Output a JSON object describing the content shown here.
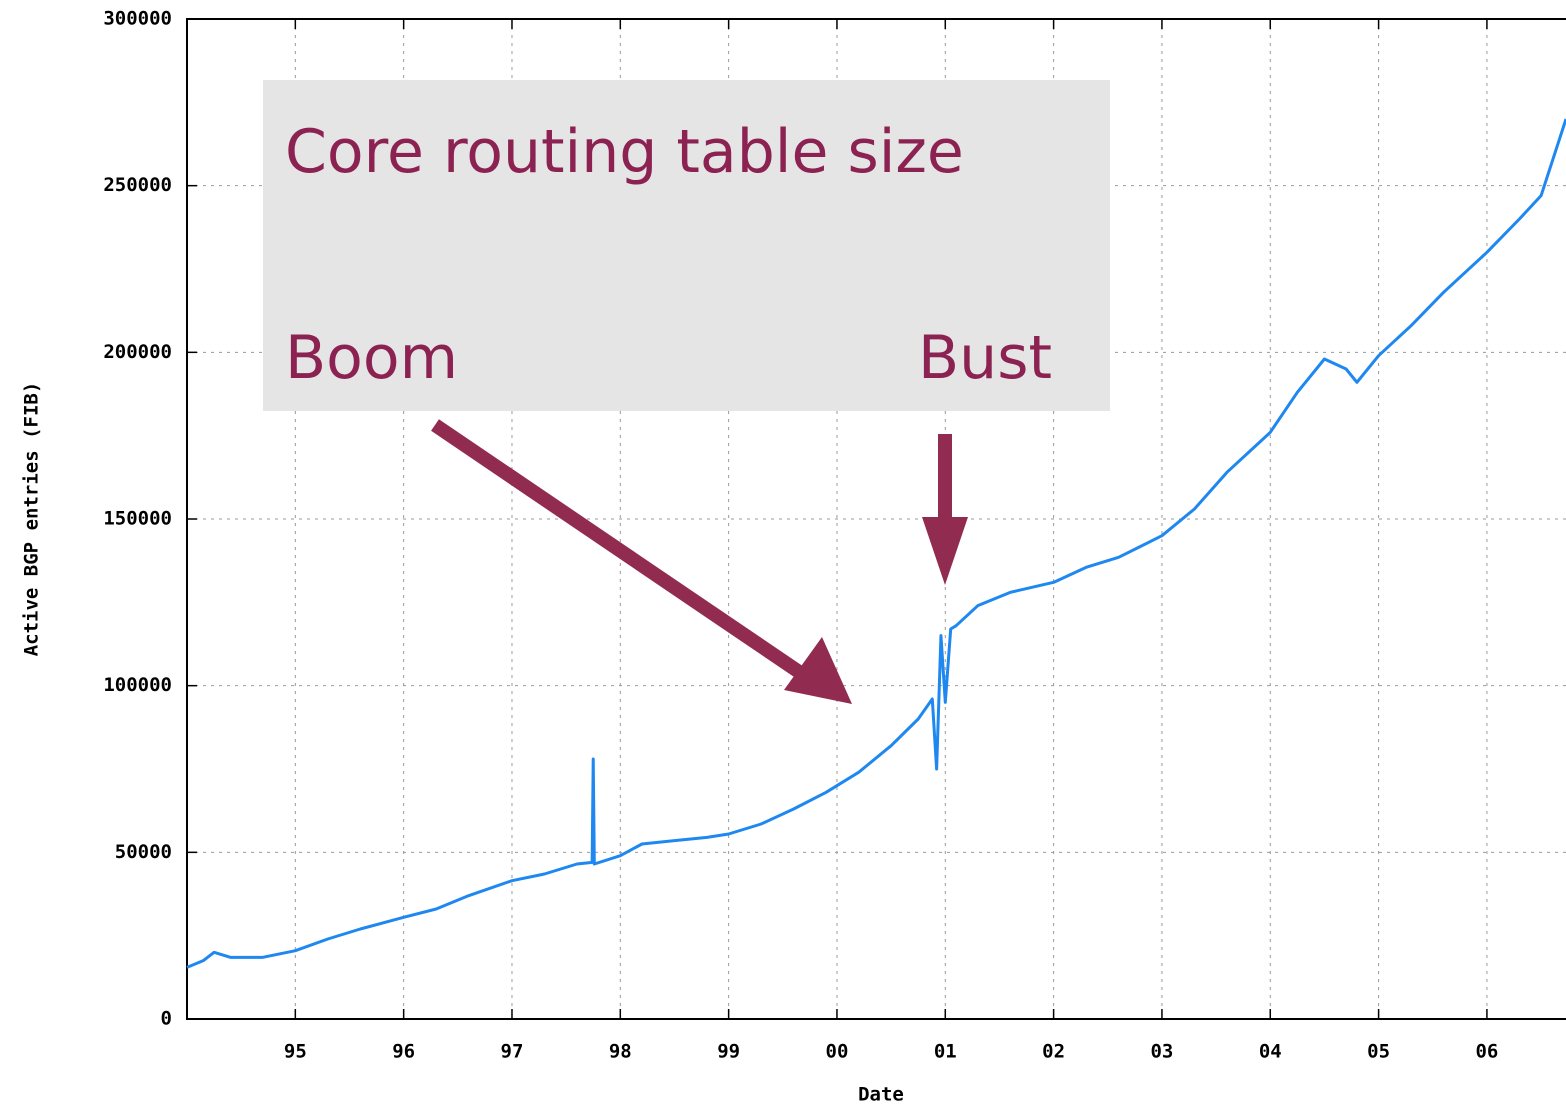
{
  "chart_data": {
    "type": "line",
    "xlabel": "Date",
    "ylabel": "Active BGP entries (FIB)",
    "annotations": [
      "Core routing table size",
      "Boom",
      "Bust"
    ],
    "x": [
      1994.0,
      1994.15,
      1994.25,
      1994.4,
      1994.7,
      1995.0,
      1995.3,
      1995.6,
      1996.0,
      1996.3,
      1996.6,
      1997.0,
      1997.3,
      1997.6,
      1997.74,
      1997.75,
      1997.76,
      1998.0,
      1998.2,
      1998.5,
      1998.8,
      1999.0,
      1999.3,
      1999.6,
      1999.9,
      2000.2,
      2000.5,
      2000.75,
      2000.88,
      2000.92,
      2000.96,
      2001.0,
      2001.05,
      2001.1,
      2001.3,
      2001.6,
      2002.0,
      2002.3,
      2002.6,
      2003.0,
      2003.3,
      2003.6,
      2004.0,
      2004.25,
      2004.5,
      2004.7,
      2004.8,
      2005.0,
      2005.3,
      2005.6,
      2006.0,
      2006.3,
      2006.5,
      2006.73
    ],
    "series": [
      {
        "name": "Active BGP entries",
        "color": "#1e88f0",
        "values": [
          15500,
          17500,
          20000,
          18500,
          18500,
          20500,
          24000,
          27000,
          30500,
          33000,
          37000,
          41500,
          43500,
          46500,
          47000,
          78000,
          46500,
          49000,
          52500,
          53500,
          54500,
          55500,
          58500,
          63000,
          68000,
          74000,
          82000,
          90000,
          96000,
          75000,
          115000,
          95000,
          117000,
          118000,
          124000,
          128000,
          131000,
          135500,
          138500,
          145000,
          153000,
          164000,
          176000,
          188000,
          198000,
          195000,
          191000,
          199000,
          208000,
          218000,
          230000,
          240000,
          247000,
          270000
        ]
      }
    ],
    "xlim": [
      1994.0,
      2006.73
    ],
    "ylim": [
      0,
      300000
    ],
    "xticks": [
      {
        "value": 1995,
        "label": "95"
      },
      {
        "value": 1996,
        "label": "96"
      },
      {
        "value": 1997,
        "label": "97"
      },
      {
        "value": 1998,
        "label": "98"
      },
      {
        "value": 1999,
        "label": "99"
      },
      {
        "value": 2000,
        "label": "00"
      },
      {
        "value": 2001,
        "label": "01"
      },
      {
        "value": 2002,
        "label": "02"
      },
      {
        "value": 2003,
        "label": "03"
      },
      {
        "value": 2004,
        "label": "04"
      },
      {
        "value": 2005,
        "label": "05"
      },
      {
        "value": 2006,
        "label": "06"
      }
    ],
    "yticks": [
      0,
      50000,
      100000,
      150000,
      200000,
      250000,
      300000
    ],
    "grid": true
  }
}
